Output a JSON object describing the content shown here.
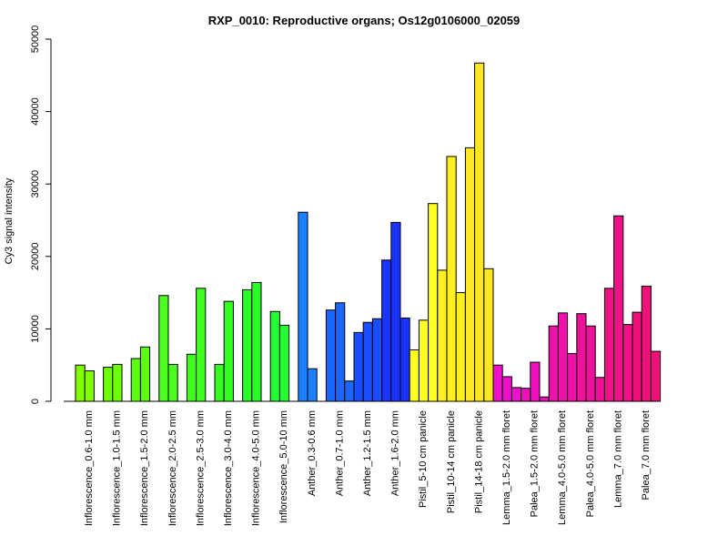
{
  "chart_data": {
    "type": "bar",
    "title": "RXP_0010: Reproductive organs; Os12g0106000_02059",
    "xlabel": "",
    "ylabel": "Cy3 signal intensity",
    "ylim": [
      0,
      50000
    ],
    "yticks": [
      0,
      10000,
      20000,
      30000,
      40000,
      50000
    ],
    "grid": false,
    "legend": "none",
    "groups": [
      {
        "label": "Inflorescence_0.6-1.0 mm",
        "color": "#7fff00",
        "values": [
          5000,
          4200
        ]
      },
      {
        "label": "Inflorescence_1.0-1.5 mm",
        "color": "#6cff00",
        "values": [
          4700,
          5100
        ]
      },
      {
        "label": "Inflorescence_1.5-2.0 mm",
        "color": "#5cff10",
        "values": [
          5900,
          7500
        ]
      },
      {
        "label": "Inflorescence_2.0-2.5 mm",
        "color": "#4cff20",
        "values": [
          14600,
          5100
        ]
      },
      {
        "label": "Inflorescence_2.5-3.0 mm",
        "color": "#40ff20",
        "values": [
          6500,
          15600
        ]
      },
      {
        "label": "Inflorescence_3.0-4.0 mm",
        "color": "#33ff22",
        "values": [
          5100,
          13800
        ]
      },
      {
        "label": "Inflorescence_4.0-5.0 mm",
        "color": "#28ff28",
        "values": [
          15400,
          16400
        ]
      },
      {
        "label": "Inflorescence_5.0-10 mm",
        "color": "#22ff33",
        "values": [
          12400,
          10500
        ]
      },
      {
        "label": "Anther_0.3-0.6 mm",
        "color": "#1a80ff",
        "values": [
          26100,
          4500
        ]
      },
      {
        "label": "Anther_0.7-1.0 mm",
        "color": "#1a66ff",
        "values": [
          12600,
          13600,
          2800
        ]
      },
      {
        "label": "Anther_1.2-1.5 mm",
        "color": "#1a4dff",
        "values": [
          9500,
          10900,
          11400
        ]
      },
      {
        "label": "Anther_1.6-2.0 mm",
        "color": "#1a33ff",
        "values": [
          19500,
          24700,
          11500
        ]
      },
      {
        "label": "Pistil_5-10 cm panicle",
        "color": "#ffff22",
        "values": [
          7100,
          11200,
          27300
        ]
      },
      {
        "label": "Pistil_10-14 cm panicle",
        "color": "#ffee22",
        "values": [
          18100,
          33800,
          15000
        ]
      },
      {
        "label": "Pistil_14-18 cm panicle",
        "color": "#ffe622",
        "values": [
          35000,
          46700,
          18300
        ]
      },
      {
        "label": "Lemma_1.5-2.0 mm floret",
        "color": "#ee11cc",
        "values": [
          5000,
          3400,
          1900
        ]
      },
      {
        "label": "Palea_1.5-2.0 mm floret",
        "color": "#ee11bb",
        "values": [
          1800,
          5400,
          600
        ]
      },
      {
        "label": "Lemma_4.0-5.0 mm floret",
        "color": "#ee11aa",
        "values": [
          10400,
          12200,
          6600
        ]
      },
      {
        "label": "Palea_4.0-5.0 mm floret",
        "color": "#ee119a",
        "values": [
          12100,
          10400,
          3300
        ]
      },
      {
        "label": "Lemma_7.0 mm floret",
        "color": "#ee1188",
        "values": [
          15600,
          25600,
          10600
        ]
      },
      {
        "label": "Palea_7.0 mm floret",
        "color": "#ee1177",
        "values": [
          12300,
          15900,
          6900
        ]
      }
    ]
  }
}
